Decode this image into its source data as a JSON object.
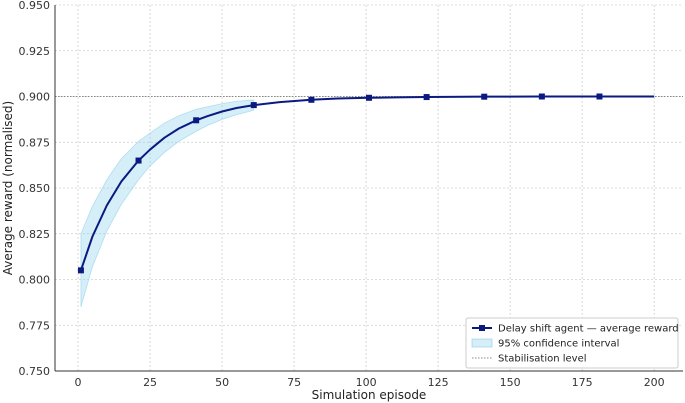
{
  "chart_data": {
    "type": "line",
    "xlabel": "Simulation episode",
    "ylabel": "Average reward (normalised)",
    "xlim": [
      -8,
      210
    ],
    "ylim": [
      0.75,
      0.95
    ],
    "xticks": [
      0,
      25,
      50,
      75,
      100,
      125,
      150,
      175,
      200
    ],
    "yticks": [
      0.75,
      0.775,
      0.8,
      0.825,
      0.85,
      0.875,
      0.9,
      0.925,
      0.95
    ],
    "grid": true,
    "legend_position": "bottom-right",
    "series": [
      {
        "name": "Delay shift agent — average reward",
        "color": "#0a1a80",
        "marker": "square",
        "markers_x": [
          1,
          21,
          41,
          61,
          81,
          101,
          121,
          141,
          161,
          181
        ],
        "x": [
          1,
          5,
          10,
          15,
          21,
          25,
          30,
          35,
          41,
          45,
          50,
          55,
          61,
          70,
          81,
          90,
          101,
          110,
          121,
          141,
          161,
          181,
          200
        ],
        "y": [
          0.805,
          0.8235,
          0.8405,
          0.8535,
          0.865,
          0.871,
          0.8775,
          0.8825,
          0.887,
          0.8893,
          0.8918,
          0.8937,
          0.8953,
          0.8969,
          0.8982,
          0.8989,
          0.8993,
          0.8995,
          0.8997,
          0.8999,
          0.9,
          0.9,
          0.9
        ]
      }
    ],
    "confidence_interval": {
      "name": "95% confidence interval",
      "color": "#87ceeb",
      "x": [
        1,
        5,
        10,
        15,
        21,
        25,
        30,
        35,
        41,
        45,
        50,
        55,
        61
      ],
      "lower": [
        0.785,
        0.807,
        0.8265,
        0.841,
        0.8545,
        0.862,
        0.8695,
        0.8755,
        0.881,
        0.8842,
        0.8875,
        0.89,
        0.8925
      ],
      "upper": [
        0.825,
        0.84,
        0.8545,
        0.866,
        0.8755,
        0.88,
        0.8855,
        0.8895,
        0.893,
        0.8944,
        0.8961,
        0.8974,
        0.8981
      ]
    },
    "reference_line": {
      "name": "Stabilisation level",
      "y": 0.9,
      "color": "#888888"
    }
  }
}
